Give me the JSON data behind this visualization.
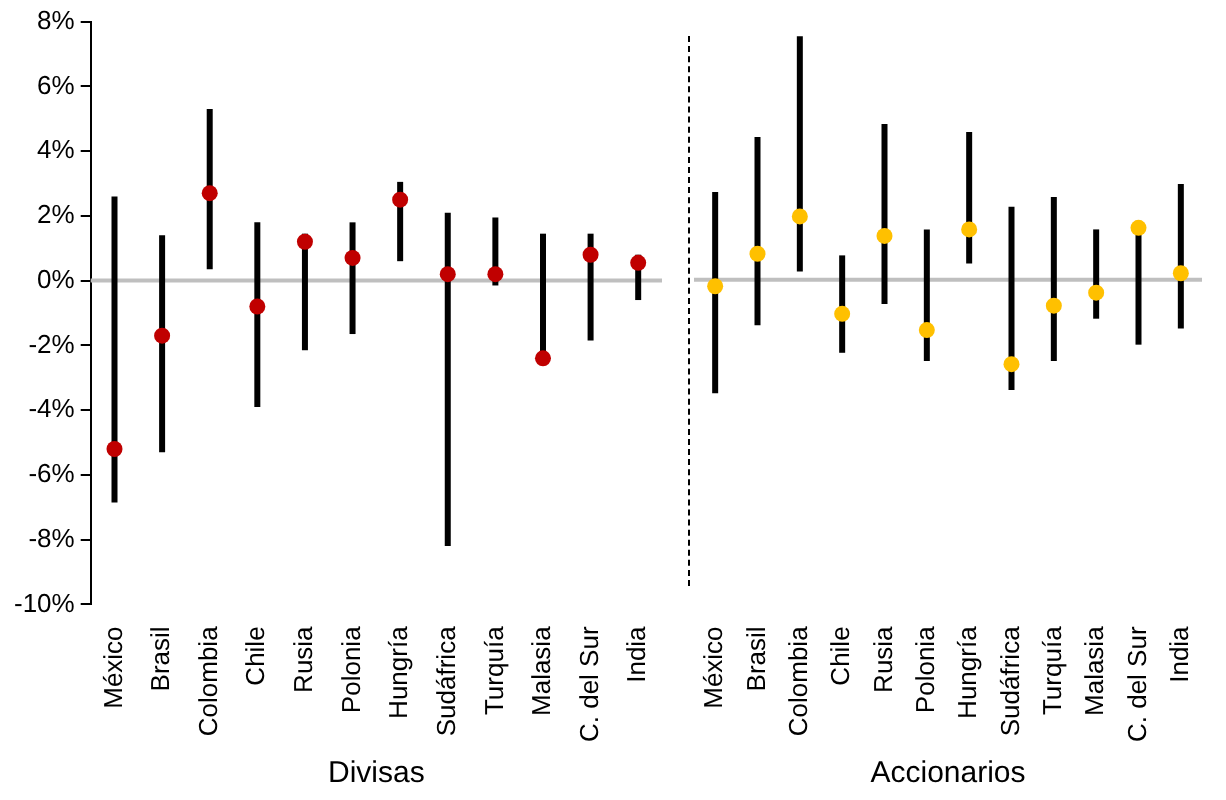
{
  "chart_data": [
    {
      "type": "scatter",
      "xlabel": "Divisas",
      "categories": [
        "México",
        "Brasil",
        "Colombia",
        "Chile",
        "Rusia",
        "Polonia",
        "Hungría",
        "Sudáfrica",
        "Turquía",
        "Malasia",
        "C. del Sur",
        "India"
      ],
      "series": [
        {
          "color": "#c00000",
          "values": [
            -5.2,
            -1.7,
            2.7,
            -0.8,
            1.2,
            0.7,
            2.5,
            0.2,
            0.2,
            -2.4,
            0.8,
            0.55
          ],
          "errors": [
            [
              -6.85,
              2.6
            ],
            [
              -5.3,
              1.4
            ],
            [
              0.35,
              5.3
            ],
            [
              -3.9,
              1.8
            ],
            [
              -2.15,
              1.45
            ],
            [
              -1.65,
              1.8
            ],
            [
              0.6,
              3.05
            ],
            [
              -8.2,
              2.1
            ],
            [
              -0.15,
              1.95
            ],
            [
              -2.4,
              1.45
            ],
            [
              -1.85,
              1.45
            ],
            [
              -0.6,
              0.8
            ]
          ]
        }
      ],
      "ylim": [
        -10,
        8
      ],
      "yticks": [
        {
          "value": -10,
          "label": "-10%"
        },
        {
          "value": -8,
          "label": "-8%"
        },
        {
          "value": -6,
          "label": "-6%"
        },
        {
          "value": -4,
          "label": "-4%"
        },
        {
          "value": -2,
          "label": "-2%"
        },
        {
          "value": 0,
          "label": "0%"
        },
        {
          "value": 2,
          "label": "2%"
        },
        {
          "value": 4,
          "label": "4%"
        },
        {
          "value": 6,
          "label": "6%"
        },
        {
          "value": 8,
          "label": "8%"
        }
      ],
      "ref_lines": [
        {
          "axis": "y",
          "value": 0,
          "color": "#bfbfbf"
        }
      ],
      "grid": false,
      "legend": false,
      "marker": "circle"
    },
    {
      "type": "scatter",
      "xlabel": "Accionarios",
      "categories": [
        "México",
        "Brasil",
        "Colombia",
        "Chile",
        "Rusia",
        "Polonia",
        "Hungría",
        "Sudáfrica",
        "Turquía",
        "Malasia",
        "C. del Sur",
        "India"
      ],
      "series": [
        {
          "color": "#ffc000",
          "values": [
            -0.2,
            0.8,
            1.95,
            -1.05,
            1.35,
            -1.55,
            1.55,
            -2.6,
            -0.8,
            -0.4,
            1.6,
            0.2
          ],
          "errors": [
            [
              -3.5,
              2.7
            ],
            [
              -1.4,
              4.4
            ],
            [
              0.25,
              7.5
            ],
            [
              -2.25,
              0.75
            ],
            [
              -0.75,
              4.8
            ],
            [
              -2.5,
              1.55
            ],
            [
              0.5,
              4.55
            ],
            [
              -3.4,
              2.25
            ],
            [
              -2.5,
              2.55
            ],
            [
              -1.2,
              1.55
            ],
            [
              -2.0,
              1.6
            ],
            [
              -1.5,
              2.95
            ]
          ]
        }
      ],
      "ylim": [
        -10,
        8
      ],
      "tick_labels": "x",
      "ref_lines": [
        {
          "axis": "y",
          "value": 0,
          "color": "#bfbfbf"
        }
      ],
      "grid": false,
      "legend": false,
      "marker": "circle"
    }
  ]
}
